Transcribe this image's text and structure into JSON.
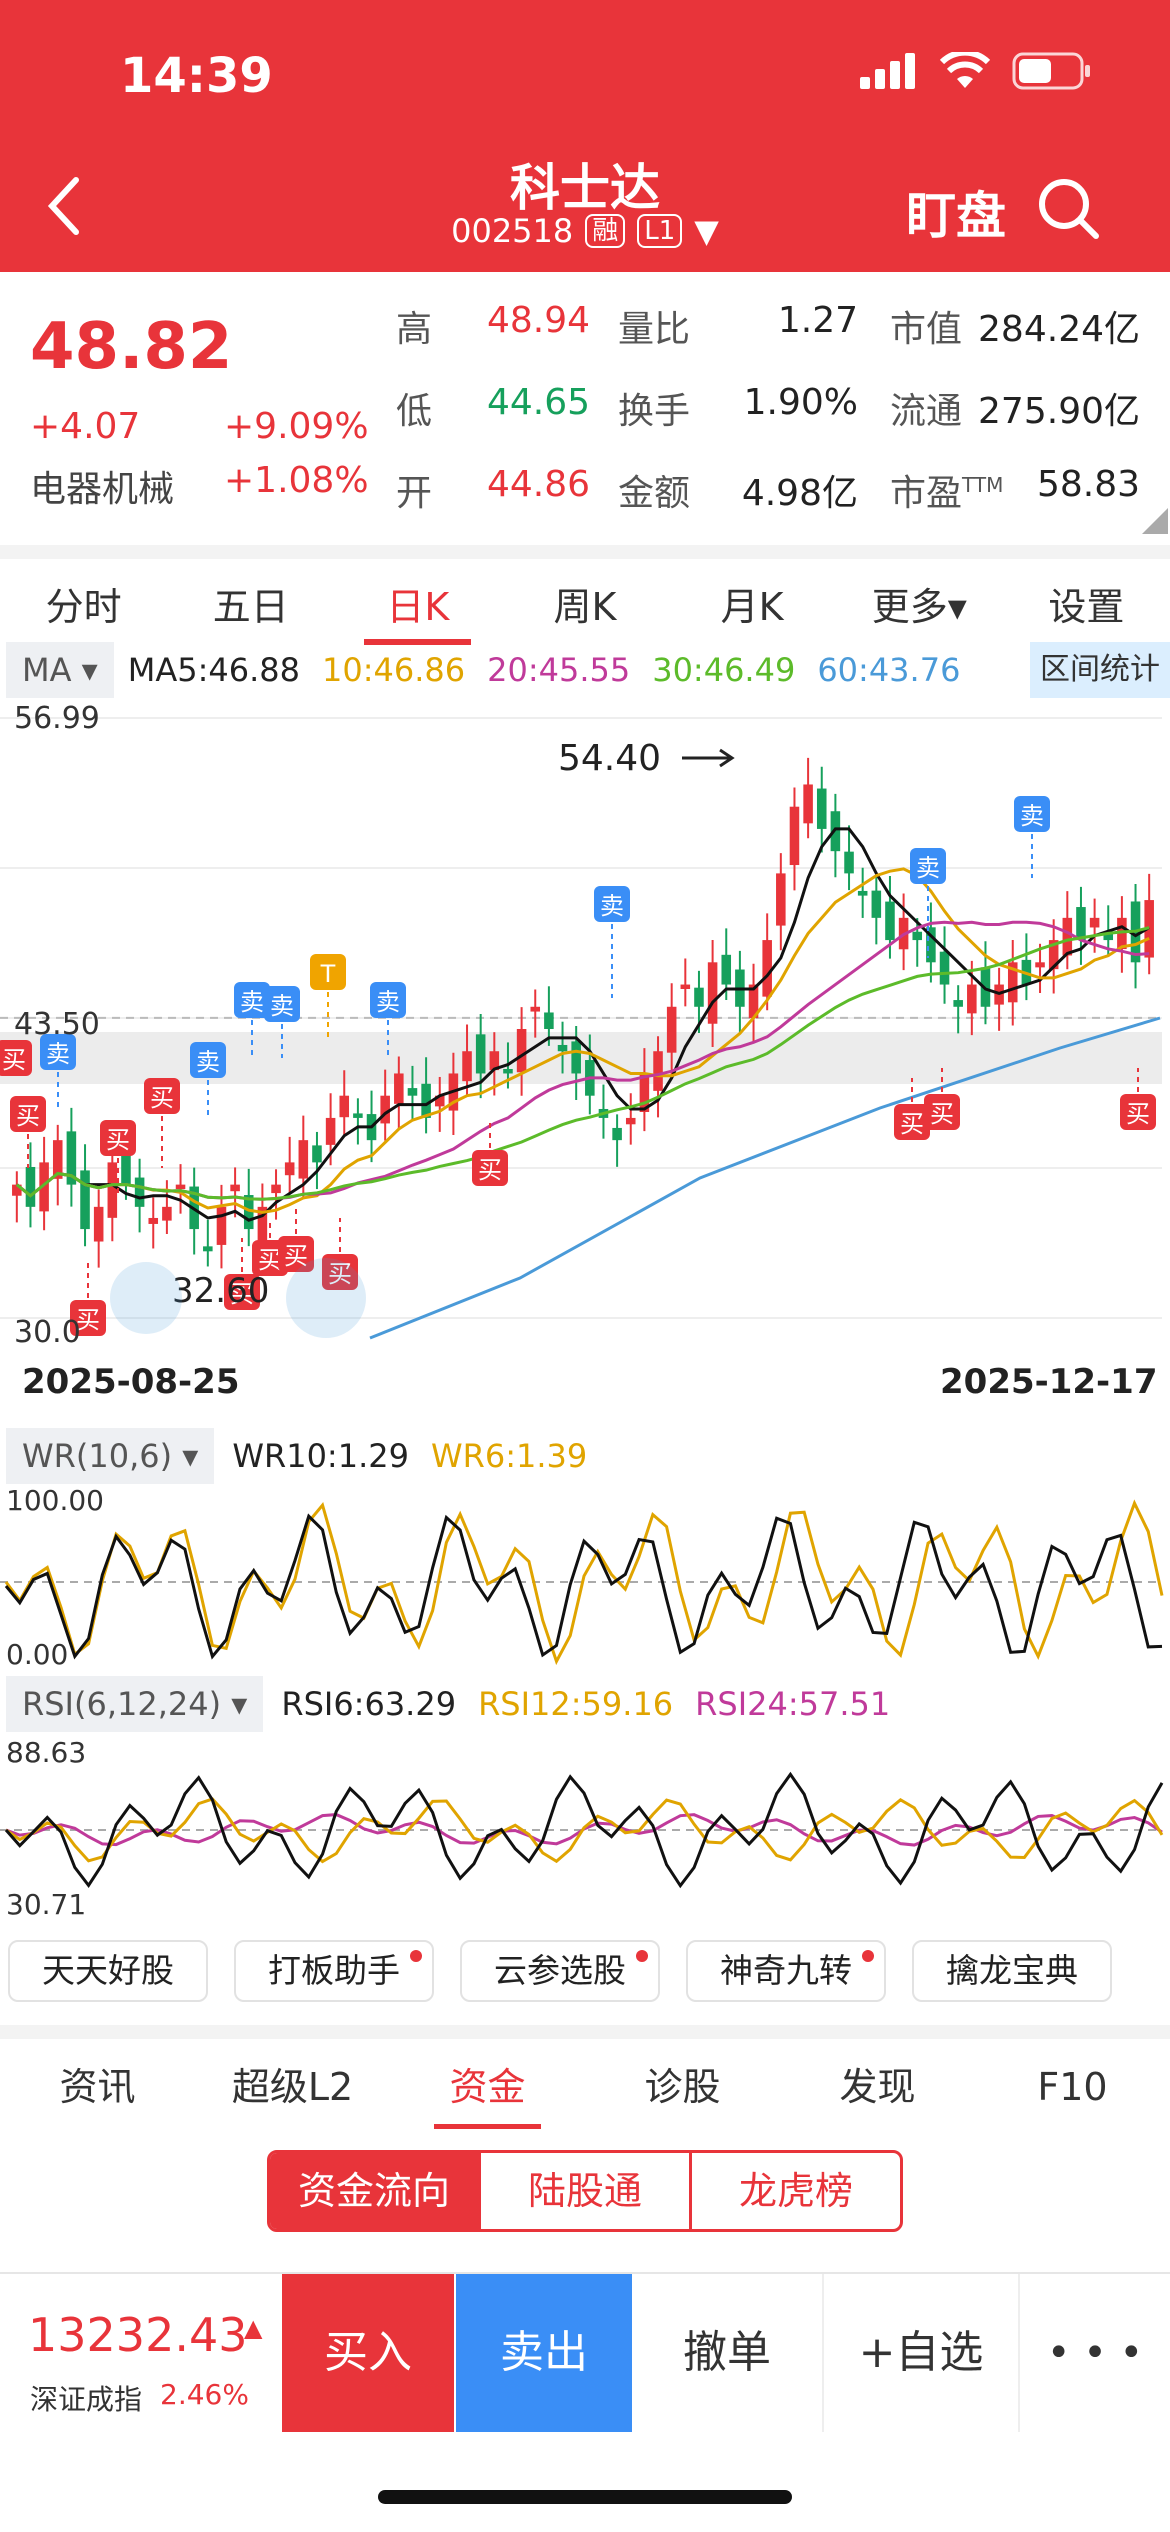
{
  "status": {
    "time": "14:39"
  },
  "header": {
    "stock_name": "科士达",
    "code": "002518",
    "badge_margin": "融",
    "badge_level": "L1",
    "watch_label": "盯盘"
  },
  "quote": {
    "price": "48.82",
    "change": "+4.07",
    "change_pct": "+9.09%",
    "sector": "电器机械",
    "sector_pct": "+1.08%",
    "fields": [
      {
        "label": "高",
        "value": "48.94",
        "color": "red"
      },
      {
        "label": "量比",
        "value": "1.27",
        "color": "black"
      },
      {
        "label": "市值",
        "value": "284.24亿",
        "color": "black"
      },
      {
        "label": "低",
        "value": "44.65",
        "color": "green"
      },
      {
        "label": "换手",
        "value": "1.90%",
        "color": "black"
      },
      {
        "label": "流通",
        "value": "275.90亿",
        "color": "black"
      },
      {
        "label": "开",
        "value": "44.86",
        "color": "red"
      },
      {
        "label": "金额",
        "value": "4.98亿",
        "color": "black"
      },
      {
        "label": "市盈",
        "value": "58.83",
        "color": "black",
        "sup": "TTM"
      }
    ]
  },
  "period_tabs": [
    "分时",
    "五日",
    "日K",
    "周K",
    "月K",
    "更多▾",
    "设置"
  ],
  "ma_bar": {
    "selector": "MA",
    "items": [
      {
        "text": "MA5:46.88",
        "color": "#222222"
      },
      {
        "text": "10:46.86",
        "color": "#e0a400"
      },
      {
        "text": "20:45.55",
        "color": "#c03a9a"
      },
      {
        "text": "30:46.49",
        "color": "#5cbb2a"
      },
      {
        "text": "60:43.76",
        "color": "#4a9ad8"
      }
    ],
    "range_stat": "区间统计"
  },
  "kline": {
    "y_top": "56.99",
    "y_mid": "43.50",
    "y_low": "30.0",
    "max_label": "54.40",
    "min_label": "32.60",
    "date_start": "2025-08-25",
    "date_end": "2025-12-17",
    "buy": "买",
    "sell": "卖",
    "t": "T"
  },
  "wr": {
    "selector": "WR(10,6)",
    "v1": "WR10:1.29",
    "v2": "WR6:1.39",
    "top": "100.00",
    "bottom": "0.00"
  },
  "rsi": {
    "selector": "RSI(6,12,24)",
    "v1": "RSI6:63.29",
    "v2": "RSI12:59.16",
    "v3": "RSI24:57.51",
    "top": "88.63",
    "bottom": "30.71"
  },
  "shortcuts": [
    {
      "label": "天天好股",
      "dot": false
    },
    {
      "label": "打板助手",
      "dot": true
    },
    {
      "label": "云参选股",
      "dot": true
    },
    {
      "label": "神奇九转",
      "dot": true
    },
    {
      "label": "擒龙宝典",
      "dot": false
    }
  ],
  "sub_tabs": [
    "资讯",
    "超级L2",
    "资金",
    "诊股",
    "发现",
    "F10"
  ],
  "segments": [
    "资金流向",
    "陆股通",
    "龙虎榜"
  ],
  "bottom": {
    "index_value": "13232.43",
    "index_name": "深证成指",
    "index_pct": "2.46%",
    "buy": "买入",
    "sell": "卖出",
    "cancel": "撤单",
    "watch": "+自选",
    "more": "• • •"
  }
}
